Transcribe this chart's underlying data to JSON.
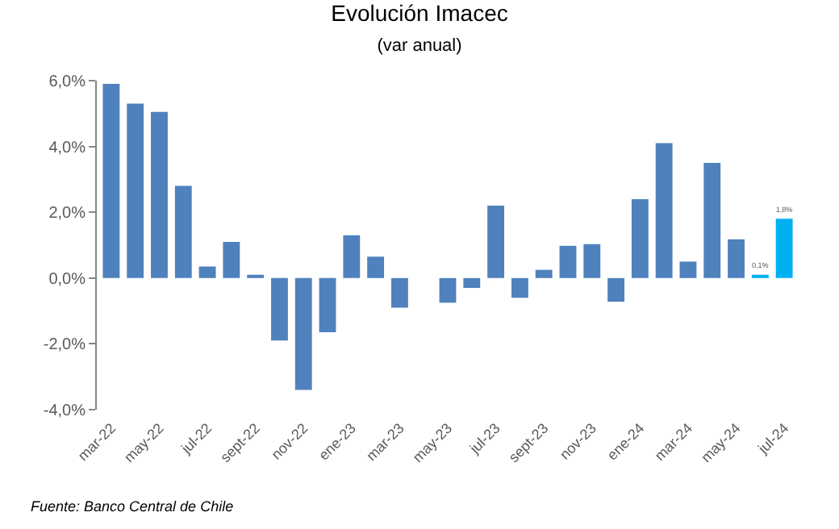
{
  "chart_data": {
    "type": "bar",
    "title": "Evolución Imacec",
    "subtitle": "(var anual)",
    "categories": [
      "mar-22",
      null,
      "may-22",
      null,
      "jul-22",
      null,
      "sept-22",
      null,
      "nov-22",
      null,
      "ene-23",
      null,
      "mar-23",
      null,
      "may-23",
      null,
      "jul-23",
      null,
      "sept-23",
      null,
      "nov-23",
      null,
      "ene-24",
      null,
      "mar-24",
      null,
      "may-24",
      null,
      "jul-24"
    ],
    "values": [
      5.9,
      5.3,
      5.05,
      2.8,
      0.35,
      1.1,
      0.1,
      -1.9,
      -3.4,
      -1.65,
      1.3,
      0.65,
      -0.9,
      0.0,
      -0.75,
      -0.3,
      2.2,
      -0.6,
      0.25,
      0.98,
      1.03,
      -0.72,
      2.4,
      4.1,
      0.5,
      3.5,
      1.18,
      0.1,
      1.8
    ],
    "colors": [
      "#4f81bd",
      "#4f81bd",
      "#4f81bd",
      "#4f81bd",
      "#4f81bd",
      "#4f81bd",
      "#4f81bd",
      "#4f81bd",
      "#4f81bd",
      "#4f81bd",
      "#4f81bd",
      "#4f81bd",
      "#4f81bd",
      "#4f81bd",
      "#4f81bd",
      "#4f81bd",
      "#4f81bd",
      "#4f81bd",
      "#4f81bd",
      "#4f81bd",
      "#4f81bd",
      "#4f81bd",
      "#4f81bd",
      "#4f81bd",
      "#4f81bd",
      "#4f81bd",
      "#4f81bd",
      "#00b0f0",
      "#00b0f0"
    ],
    "value_labels": [
      null,
      null,
      null,
      null,
      null,
      null,
      null,
      null,
      null,
      null,
      null,
      null,
      null,
      null,
      null,
      null,
      null,
      null,
      null,
      null,
      null,
      null,
      null,
      null,
      null,
      null,
      null,
      "0,1%",
      "1,8%"
    ],
    "ylim": [
      -4,
      6
    ],
    "yticks": [
      {
        "value": -4,
        "label": "-4,0%"
      },
      {
        "value": -2,
        "label": "-2,0%"
      },
      {
        "value": 0,
        "label": "0,0%"
      },
      {
        "value": 2,
        "label": "2,0%"
      },
      {
        "value": 4,
        "label": "4,0%"
      },
      {
        "value": 6,
        "label": "6,0%"
      }
    ],
    "legend": false,
    "annotations": [
      "Fuente: Banco Central de Chile"
    ]
  }
}
